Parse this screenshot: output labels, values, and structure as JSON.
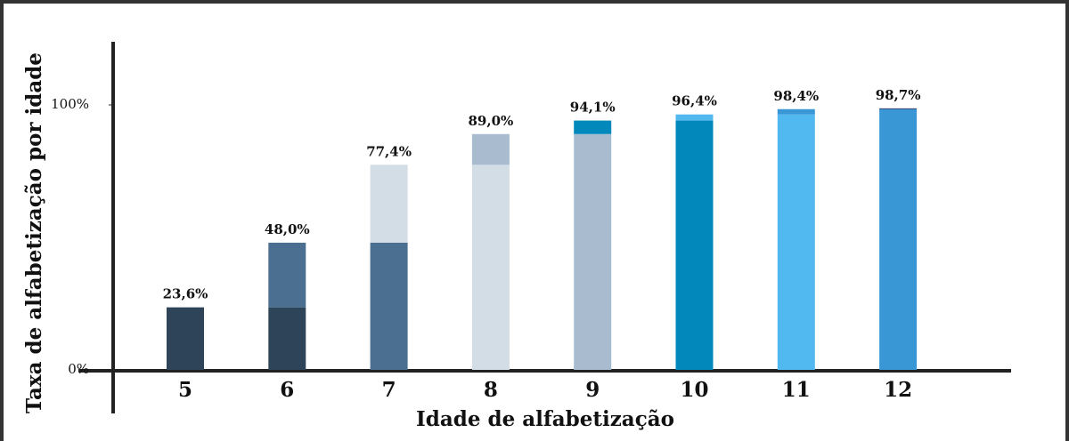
{
  "chart_data": {
    "type": "bar",
    "y_label": "Taxa de alfabetização por idade",
    "x_label": "Idade de alfabetização",
    "categories": [
      "5",
      "6",
      "7",
      "8",
      "9",
      "10",
      "11",
      "12"
    ],
    "values": [
      23.6,
      48.0,
      77.4,
      89.0,
      94.1,
      96.4,
      98.4,
      98.7
    ],
    "value_labels": [
      "23,6%",
      "48,0%",
      "77,4%",
      "89,0%",
      "94,1%",
      "96,4%",
      "98,4%",
      "98,7%"
    ],
    "colors": [
      "#2e4459",
      "#4a6f91",
      "#d3dde6",
      "#a9bccf",
      "#0288bb",
      "#52b8f0",
      "#3a97d6",
      "#1b2a5e"
    ],
    "ylim": [
      0,
      100
    ],
    "yticks": [
      {
        "value": 0,
        "label": "0%"
      },
      {
        "value": 100,
        "label": "100%"
      }
    ]
  }
}
